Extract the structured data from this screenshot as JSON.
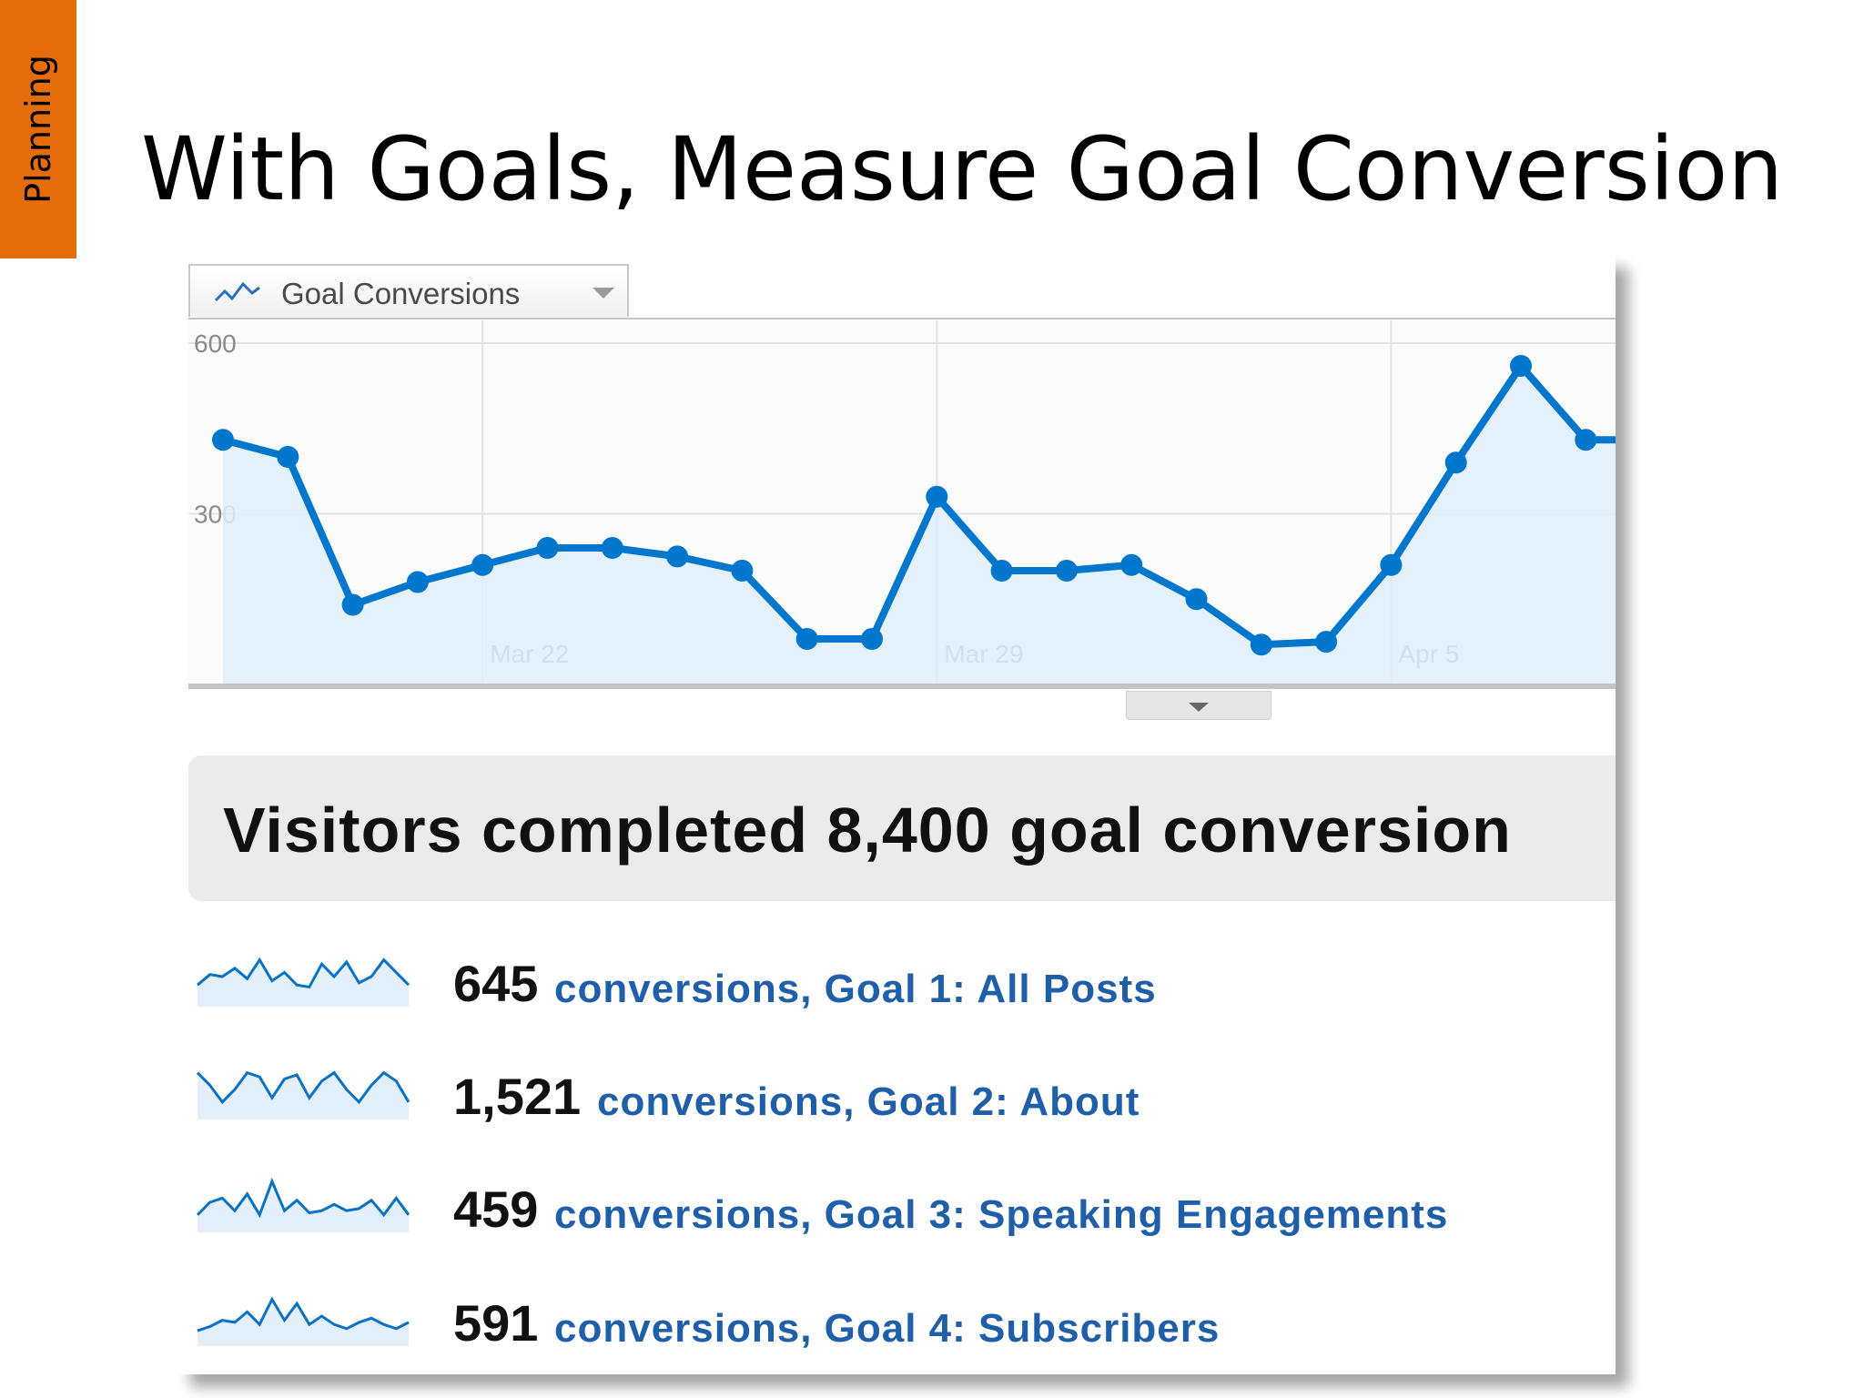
{
  "section_tag": "Planning",
  "title": "With Goals, Measure Goal Conversion",
  "dropdown": {
    "label": "Goal Conversions",
    "icon": "line-chart-icon"
  },
  "chart_data": {
    "type": "area",
    "y_ticks": [
      "600",
      "300"
    ],
    "ylim": [
      0,
      640
    ],
    "x_labels": [
      "Mar 22",
      "Mar 29",
      "Apr 5"
    ],
    "grid": true,
    "colors": {
      "line": "#0077cc",
      "fill": "#dfeefa",
      "grid": "#e4e4e4"
    },
    "series": [
      {
        "values": [
          430,
          400,
          140,
          180,
          210,
          240,
          240,
          225,
          200,
          80,
          80,
          330,
          200,
          200,
          210,
          150,
          70,
          75,
          210,
          390,
          560,
          430,
          430
        ]
      }
    ]
  },
  "summary": {
    "text": "Visitors completed 8,400 goal conversion"
  },
  "goals": [
    {
      "count": "645",
      "label": "conversions, Goal 1: All Posts",
      "spark": [
        0.3,
        0.55,
        0.5,
        0.7,
        0.45,
        0.9,
        0.4,
        0.6,
        0.3,
        0.25,
        0.8,
        0.5,
        0.85,
        0.35,
        0.5,
        0.9,
        0.6,
        0.3
      ]
    },
    {
      "count": "1,521",
      "label": "conversions, Goal 2: About",
      "spark": [
        0.9,
        0.6,
        0.2,
        0.5,
        0.9,
        0.8,
        0.3,
        0.75,
        0.85,
        0.3,
        0.7,
        0.9,
        0.5,
        0.2,
        0.6,
        0.9,
        0.7,
        0.2
      ]
    },
    {
      "count": "459",
      "label": "conversions, Goal 3: Speaking Engagements",
      "spark": [
        0.2,
        0.5,
        0.6,
        0.3,
        0.7,
        0.2,
        1.0,
        0.3,
        0.55,
        0.25,
        0.3,
        0.45,
        0.3,
        0.35,
        0.55,
        0.2,
        0.6,
        0.2
      ]
    },
    {
      "count": "591",
      "label": "conversions, Goal 4: Subscribers",
      "spark": [
        0.15,
        0.25,
        0.4,
        0.35,
        0.6,
        0.3,
        0.9,
        0.4,
        0.8,
        0.3,
        0.5,
        0.3,
        0.2,
        0.35,
        0.45,
        0.3,
        0.2,
        0.35
      ]
    }
  ]
}
